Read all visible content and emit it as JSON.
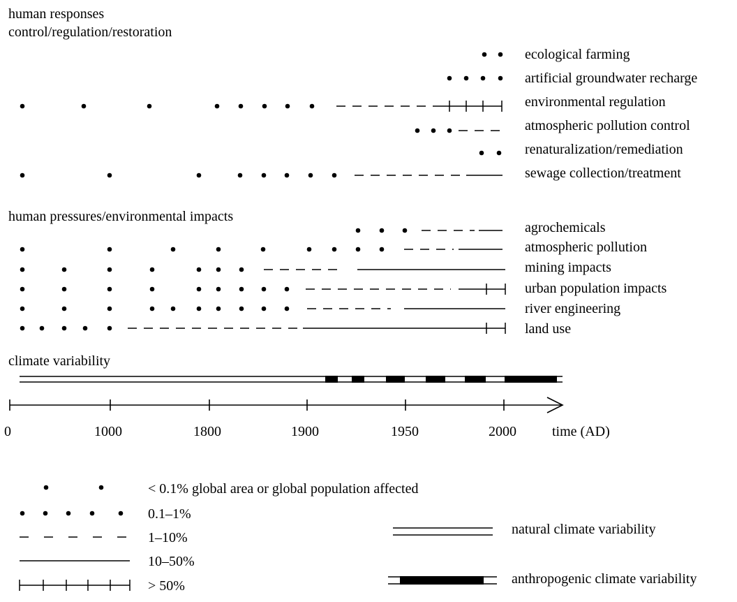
{
  "sections": {
    "responses_title": "human responses",
    "responses_subtitle": "control/regulation/restoration",
    "pressures_title": "human pressures/environmental impacts",
    "climate_title": "climate variability"
  },
  "responses": [
    {
      "label": "ecological farming"
    },
    {
      "label": "artificial groundwater recharge"
    },
    {
      "label": "environmental regulation"
    },
    {
      "label": "atmospheric pollution control"
    },
    {
      "label": "renaturalization/remediation"
    },
    {
      "label": "sewage collection/treatment"
    }
  ],
  "pressures": [
    {
      "label": "agrochemicals"
    },
    {
      "label": "atmospheric pollution"
    },
    {
      "label": "mining impacts"
    },
    {
      "label": "urban population impacts"
    },
    {
      "label": "river engineering"
    },
    {
      "label": "land use"
    }
  ],
  "axis": {
    "ticks": [
      "0",
      "1000",
      "1800",
      "1900",
      "1950",
      "2000"
    ],
    "label": "time (AD)"
  },
  "legend": {
    "sparse_dots": "< 0.1% global area or global population affected",
    "dense_dots": "0.1–1%",
    "dashes": "1–10%",
    "solid": "10–50%",
    "ticked": "> 50%",
    "natural": "natural climate variability",
    "anthropogenic": "anthropogenic climate variability"
  }
}
